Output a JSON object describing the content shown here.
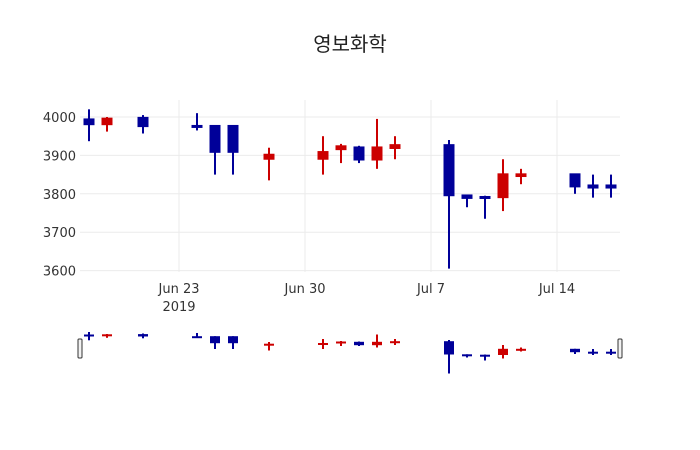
{
  "chart_data": {
    "type": "candlestick",
    "title": "영보화학",
    "xlabel": "",
    "ylabel": "",
    "ylim": [
      3590,
      4045
    ],
    "yticks": [
      3600,
      3700,
      3800,
      3900,
      4000
    ],
    "xticks": [
      {
        "label": "Jun 23",
        "sublabel": "2019",
        "date": "2019-06-23"
      },
      {
        "label": "Jun 30",
        "sublabel": "",
        "date": "2019-06-30"
      },
      {
        "label": "Jul 7",
        "sublabel": "",
        "date": "2019-07-07"
      },
      {
        "label": "Jul 14",
        "sublabel": "",
        "date": "2019-07-14"
      }
    ],
    "grid": true,
    "increasing_color": "#cc0000",
    "decreasing_color": "#000099",
    "rangeslider": true,
    "candles": [
      {
        "date": "2019-06-18",
        "open": 3995,
        "high": 4020,
        "low": 3937,
        "close": 3980
      },
      {
        "date": "2019-06-19",
        "open": 3980,
        "high": 4000,
        "low": 3962,
        "close": 3997
      },
      {
        "date": "2019-06-21",
        "open": 3999,
        "high": 4005,
        "low": 3957,
        "close": 3975
      },
      {
        "date": "2019-06-24",
        "open": 3978,
        "high": 4010,
        "low": 3965,
        "close": 3973
      },
      {
        "date": "2019-06-25",
        "open": 3978,
        "high": 3978,
        "low": 3850,
        "close": 3908
      },
      {
        "date": "2019-06-26",
        "open": 3978,
        "high": 3978,
        "low": 3850,
        "close": 3908
      },
      {
        "date": "2019-06-28",
        "open": 3890,
        "high": 3920,
        "low": 3835,
        "close": 3903
      },
      {
        "date": "2019-07-01",
        "open": 3890,
        "high": 3950,
        "low": 3850,
        "close": 3910
      },
      {
        "date": "2019-07-02",
        "open": 3915,
        "high": 3930,
        "low": 3880,
        "close": 3925
      },
      {
        "date": "2019-07-03",
        "open": 3922,
        "high": 3925,
        "low": 3880,
        "close": 3888
      },
      {
        "date": "2019-07-04",
        "open": 3888,
        "high": 3995,
        "low": 3865,
        "close": 3922
      },
      {
        "date": "2019-07-05",
        "open": 3918,
        "high": 3950,
        "low": 3890,
        "close": 3928
      },
      {
        "date": "2019-07-08",
        "open": 3928,
        "high": 3940,
        "low": 3605,
        "close": 3795
      },
      {
        "date": "2019-07-09",
        "open": 3797,
        "high": 3797,
        "low": 3765,
        "close": 3788
      },
      {
        "date": "2019-07-10",
        "open": 3793,
        "high": 3795,
        "low": 3735,
        "close": 3788
      },
      {
        "date": "2019-07-11",
        "open": 3790,
        "high": 3890,
        "low": 3755,
        "close": 3852
      },
      {
        "date": "2019-07-12",
        "open": 3845,
        "high": 3865,
        "low": 3825,
        "close": 3852
      },
      {
        "date": "2019-07-15",
        "open": 3852,
        "high": 3852,
        "low": 3800,
        "close": 3818
      },
      {
        "date": "2019-07-16",
        "open": 3823,
        "high": 3850,
        "low": 3790,
        "close": 3815
      },
      {
        "date": "2019-07-17",
        "open": 3823,
        "high": 3850,
        "low": 3790,
        "close": 3815
      }
    ]
  }
}
